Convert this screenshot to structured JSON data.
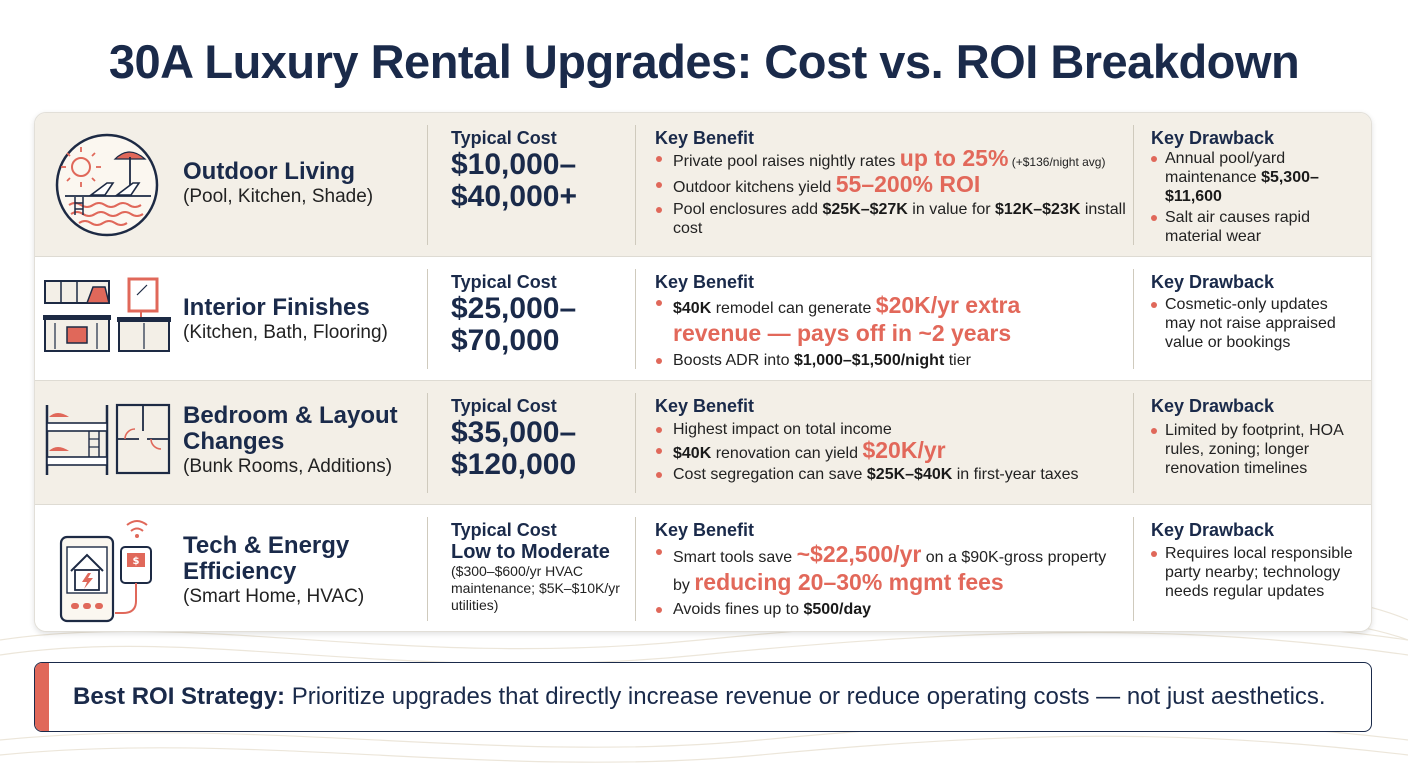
{
  "title": "30A Luxury Rental Upgrades: Cost vs. ROI Breakdown",
  "colors": {
    "navy": "#1a2a4a",
    "accent": "#e0685a",
    "beige": "#f3efe7"
  },
  "rows": [
    {
      "icon": "outdoor-pool-icon",
      "name": "Outdoor Living",
      "sub": "(Pool, Kitchen, Shade)",
      "cost_header": "Typical Cost",
      "cost_line1": "$10,000–",
      "cost_line2": "$40,000+",
      "benefit_header": "Key Benefit",
      "benefits": [
        {
          "a": "Private pool raises nightly rates ",
          "hl": "up to 25%",
          "c": " (+$136/night avg)"
        },
        {
          "a": "Outdoor kitchens yield ",
          "hl": "55–200% ROI"
        },
        {
          "a": "Pool enclosures add ",
          "b1": "$25K–$27K",
          "c": " in value for ",
          "b2": "$12K–$23K",
          "d": " install cost"
        }
      ],
      "drawback_header": "Key Drawback",
      "drawbacks": [
        {
          "a": "Annual pool/yard maintenance ",
          "b": "$5,300–$11,600"
        },
        {
          "a": "Salt air causes rapid material wear"
        }
      ]
    },
    {
      "icon": "kitchen-bath-icon",
      "name": "Interior Finishes",
      "sub": "(Kitchen, Bath, Flooring)",
      "cost_header": "Typical Cost",
      "cost_line1": "$25,000–",
      "cost_line2": "$70,000",
      "benefit_header": "Key Benefit",
      "benefits": [
        {
          "b": "$40K",
          "a": " remodel can generate ",
          "hl": "$20K/yr extra revenue — pays off in ~2 years"
        },
        {
          "a": "Boosts ADR into ",
          "b2": "$1,000–$1,500/night",
          "c": " tier"
        }
      ],
      "drawback_header": "Key Drawback",
      "drawbacks": [
        {
          "a": "Cosmetic-only updates may not raise appraised value or bookings"
        }
      ]
    },
    {
      "icon": "bunk-bed-floorplan-icon",
      "name": "Bedroom & Layout Changes",
      "sub": "(Bunk Rooms, Additions)",
      "cost_header": "Typical Cost",
      "cost_line1": "$35,000–",
      "cost_line2": "$120,000",
      "benefit_header": "Key Benefit",
      "benefits": [
        {
          "a": "Highest impact on total income"
        },
        {
          "b": "$40K",
          "a": " renovation can yield ",
          "hl": "$20K/yr"
        },
        {
          "a": "Cost segregation can save ",
          "b2": "$25K–$40K",
          "c": " in first-year taxes"
        }
      ],
      "drawback_header": "Key Drawback",
      "drawbacks": [
        {
          "a": "Limited by footprint, HOA rules, zoning; longer renovation timelines"
        }
      ]
    },
    {
      "icon": "smart-home-tablet-icon",
      "name": "Tech & Energy Efficiency",
      "sub": "(Smart Home, HVAC)",
      "cost_header": "Typical Cost",
      "cost_mid": "Low to Moderate",
      "cost_small": "($300–$600/yr HVAC maintenance; $5K–$10K/yr utilities)",
      "benefit_header": "Key Benefit",
      "benefits": [
        {
          "a": "Smart tools save ",
          "hl": "~$22,500/yr",
          "c": " on a $90K-gross property by ",
          "hl2": "reducing 20–30% mgmt fees"
        },
        {
          "a": "Avoids fines up to ",
          "b2": "$500/day"
        }
      ],
      "drawback_header": "Key Drawback",
      "drawbacks": [
        {
          "a": "Requires local responsible party nearby; technology needs regular updates"
        }
      ]
    }
  ],
  "strategy": {
    "label": "Best ROI Strategy:",
    "text": " Prioritize upgrades that directly increase revenue or reduce operating costs — not just aesthetics."
  }
}
